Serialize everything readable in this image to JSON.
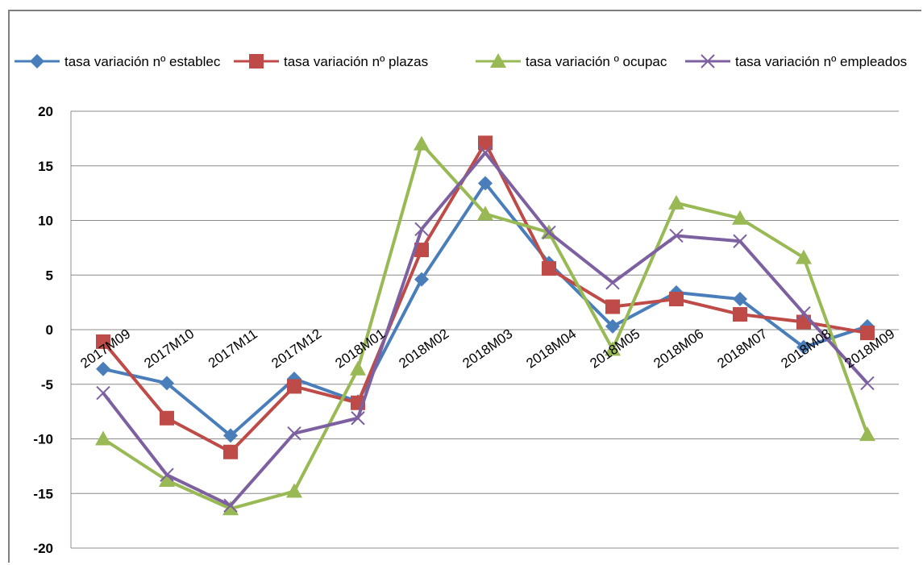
{
  "chart_data": {
    "type": "line",
    "title": "",
    "xlabel": "",
    "ylabel": "",
    "ylim": [
      -20,
      20
    ],
    "yticks": [
      20,
      15,
      10,
      5,
      0,
      -5,
      -10,
      -15,
      -20
    ],
    "grid": true,
    "legend_position": "top",
    "categories": [
      "2017M09",
      "2017M10",
      "2017M11",
      "2017M12",
      "2018M01",
      "2018M02",
      "2018M03",
      "2018M04",
      "2018M05",
      "2018M06",
      "2018M07",
      "2018M08",
      "2018M09"
    ],
    "series": [
      {
        "name": "tasa variación nº establec",
        "color": "#4a7ebb",
        "marker": "diamond",
        "values": [
          -3.6,
          -4.9,
          -9.7,
          -4.5,
          -6.6,
          4.6,
          13.4,
          6.1,
          0.3,
          3.4,
          2.8,
          -1.6,
          0.3
        ]
      },
      {
        "name": "tasa variación nº plazas",
        "color": "#be4b48",
        "marker": "square",
        "values": [
          -1.1,
          -8.1,
          -11.2,
          -5.2,
          -6.7,
          7.3,
          17.1,
          5.6,
          2.1,
          2.8,
          1.4,
          0.7,
          -0.3
        ]
      },
      {
        "name": "tasa variación  º ocupac",
        "color": "#98b954",
        "marker": "triangle",
        "values": [
          -10.0,
          -13.8,
          -16.4,
          -14.8,
          -3.6,
          17.0,
          10.6,
          8.9,
          -1.8,
          11.6,
          10.2,
          6.6,
          -9.6
        ]
      },
      {
        "name": "tasa variación nº empleados",
        "color": "#7d60a0",
        "marker": "x",
        "values": [
          -5.8,
          -13.3,
          -16.1,
          -9.5,
          -8.1,
          9.2,
          16.2,
          8.9,
          4.3,
          8.6,
          8.1,
          1.5,
          -4.9
        ]
      }
    ]
  }
}
